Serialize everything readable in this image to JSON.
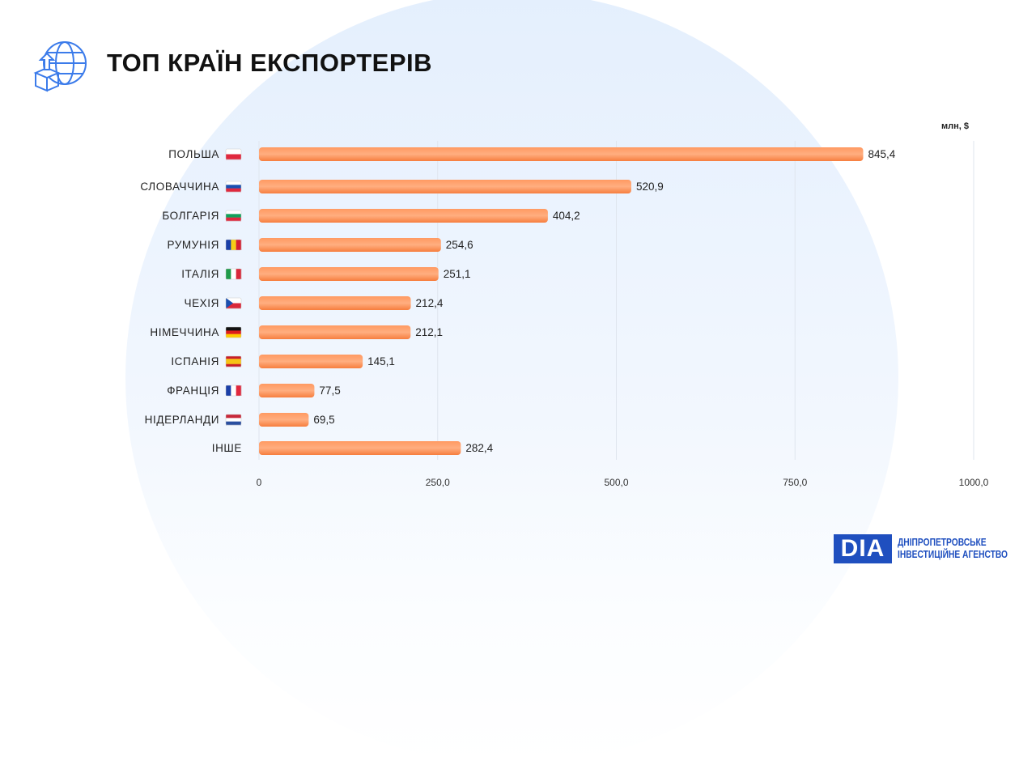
{
  "header": {
    "title": "ТОП КРАЇН ЕКСПОРТЕРІВ",
    "icon": "globe-export-box-icon"
  },
  "logo": {
    "mark": "DIA",
    "line1": "ДНІПРОПЕТРОВСЬКЕ",
    "line2": "ІНВЕСТИЦІЙНЕ АГЕНСТВО"
  },
  "chart_data": {
    "type": "bar",
    "orientation": "horizontal",
    "title": "ТОП КРАЇН ЕКСПОРТЕРІВ",
    "unit_label": "млн, $",
    "categories": [
      "ПОЛЬША",
      "СЛОВАЧЧИНА",
      "БОЛГАРІЯ",
      "РУМУНІЯ",
      "ІТАЛІЯ",
      "ЧЕХІЯ",
      "НІМЕЧЧИНА",
      "ІСПАНІЯ",
      "ФРАНЦІЯ",
      "НІДЕРЛАНДИ",
      "ІНШЕ"
    ],
    "flags": [
      "pl",
      "sk",
      "bg",
      "ro",
      "it",
      "cz",
      "de",
      "es",
      "fr",
      "nl",
      ""
    ],
    "values": [
      845.4,
      520.9,
      404.2,
      254.6,
      251.1,
      212.4,
      212.1,
      145.1,
      77.5,
      69.5,
      282.4
    ],
    "value_labels": [
      "845,4",
      "520,9",
      "404,2",
      "254,6",
      "251,1",
      "212,4",
      "212,1",
      "145,1",
      "77,5",
      "69,5",
      "282,4"
    ],
    "xlim": [
      0,
      1000
    ],
    "xticks": [
      0,
      250,
      500,
      750,
      1000
    ],
    "xtick_labels": [
      "0",
      "250,0",
      "500,0",
      "750,0",
      "1000,0"
    ],
    "grid": true,
    "bar_color": "#ff8a4c"
  }
}
